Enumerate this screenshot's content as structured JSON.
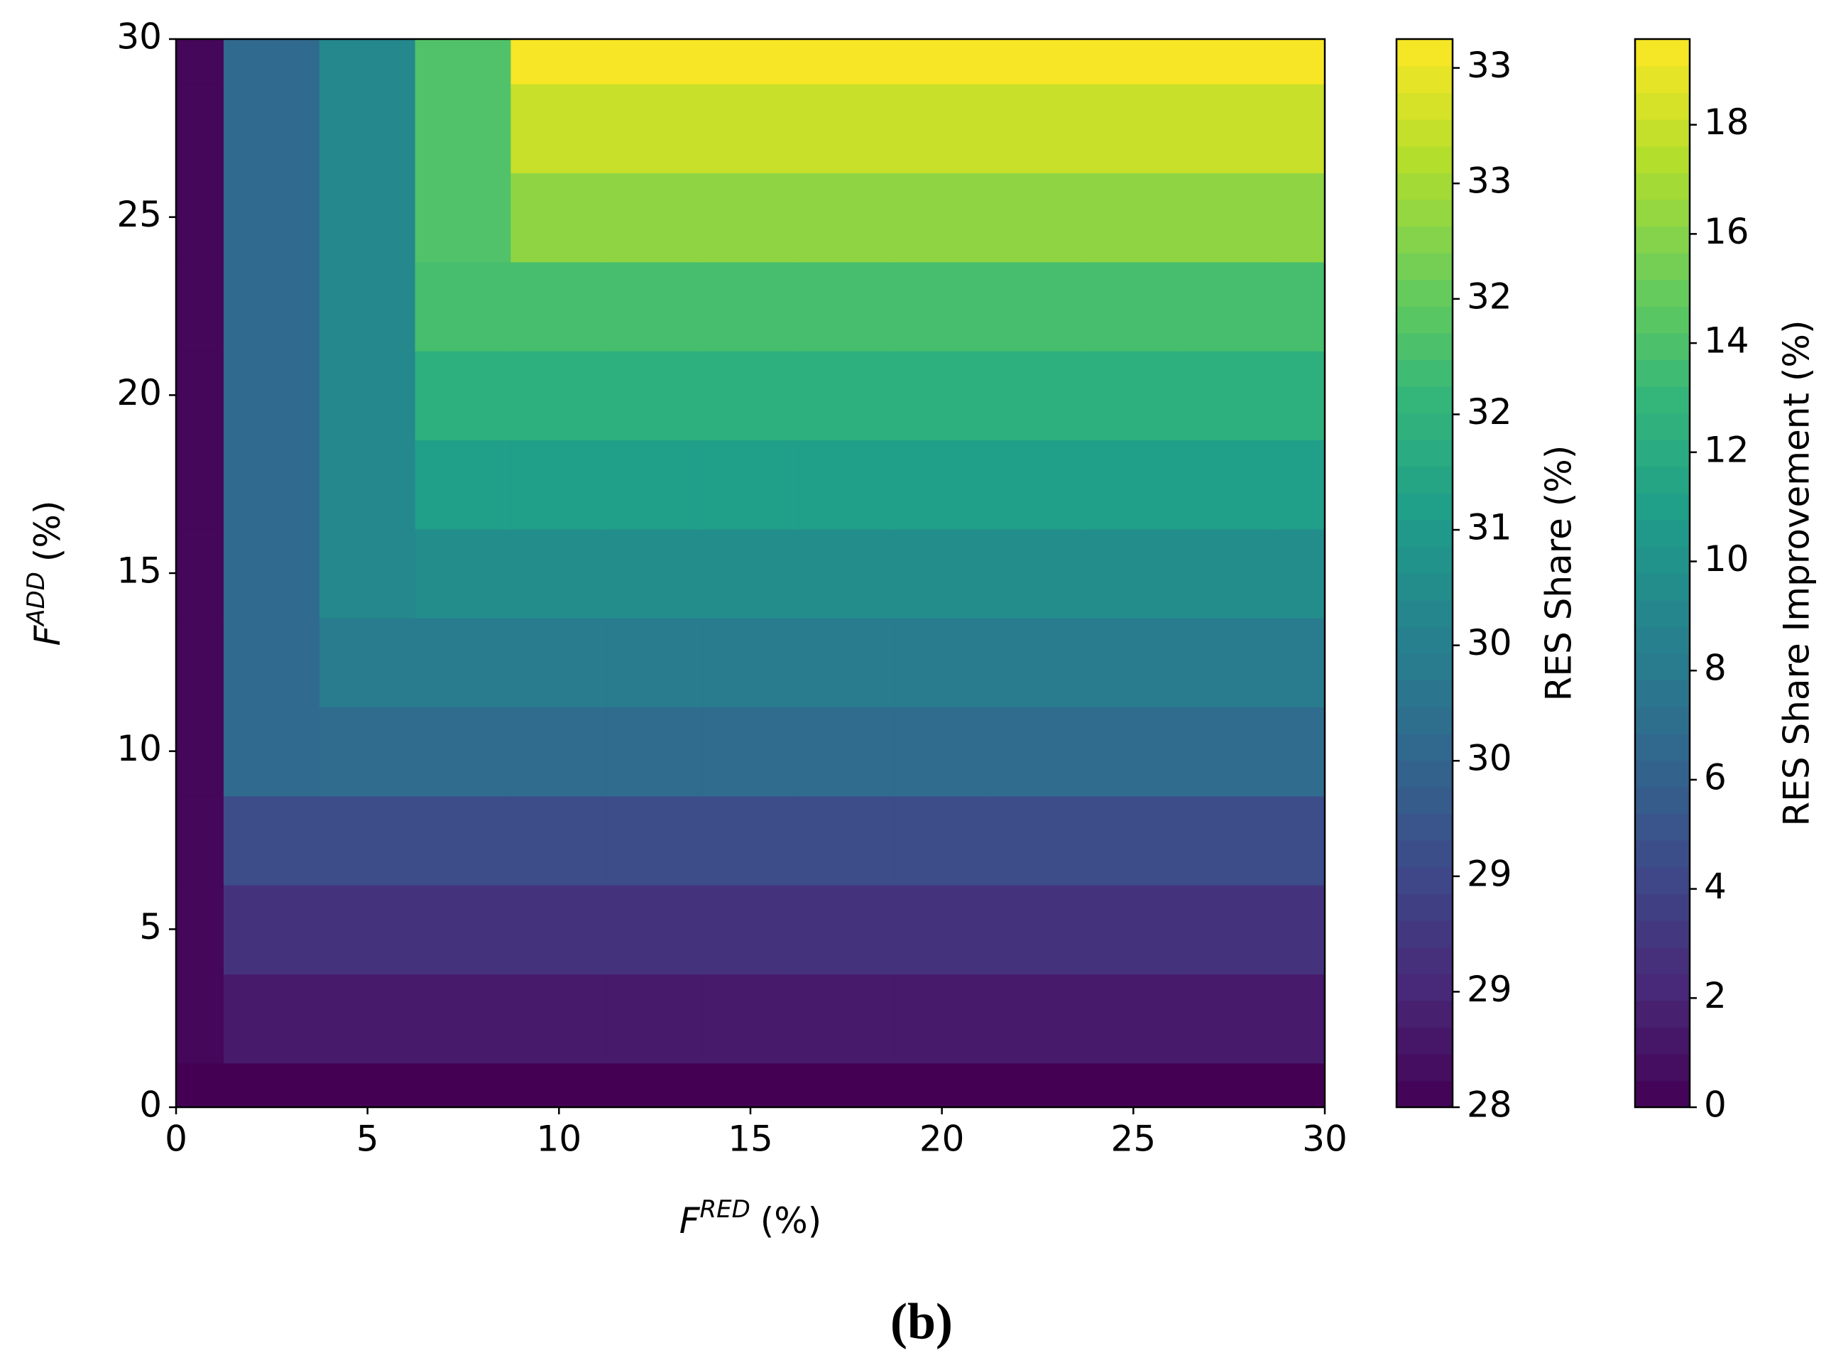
{
  "chart_data": {
    "type": "heatmap",
    "x": [
      0,
      2.5,
      5,
      7.5,
      10,
      12.5,
      15,
      17.5,
      20,
      22.5,
      25,
      27.5,
      30
    ],
    "y": [
      0,
      2.5,
      5,
      7.5,
      10,
      12.5,
      15,
      17.5,
      20,
      22.5,
      25,
      27.5,
      30
    ],
    "z": [
      [
        28.0,
        28.0,
        28.0,
        28.0,
        28.0,
        28.0,
        28.0,
        28.0,
        28.0,
        28.0,
        28.0,
        28.0,
        28.0
      ],
      [
        28.1,
        28.4,
        28.4,
        28.4,
        28.4,
        28.4,
        28.4,
        28.4,
        28.4,
        28.4,
        28.4,
        28.4,
        28.4
      ],
      [
        28.1,
        28.8,
        28.8,
        28.8,
        28.8,
        28.8,
        28.8,
        28.8,
        28.8,
        28.8,
        28.8,
        28.8,
        28.8
      ],
      [
        28.1,
        29.3,
        29.3,
        29.3,
        29.3,
        29.3,
        29.3,
        29.3,
        29.3,
        29.3,
        29.3,
        29.3,
        29.3
      ],
      [
        28.1,
        29.9,
        29.95,
        29.95,
        29.95,
        29.95,
        29.95,
        29.95,
        29.95,
        29.95,
        29.95,
        29.95,
        29.95
      ],
      [
        28.1,
        29.9,
        30.3,
        30.3,
        30.3,
        30.3,
        30.3,
        30.3,
        30.3,
        30.3,
        30.3,
        30.3,
        30.3
      ],
      [
        28.1,
        29.9,
        30.6,
        30.7,
        30.7,
        30.7,
        30.7,
        30.7,
        30.7,
        30.7,
        30.7,
        30.7,
        30.7
      ],
      [
        28.1,
        29.9,
        30.6,
        31.1,
        31.1,
        31.1,
        31.1,
        31.1,
        31.1,
        31.1,
        31.1,
        31.1,
        31.1
      ],
      [
        28.1,
        29.9,
        30.6,
        31.5,
        31.5,
        31.5,
        31.5,
        31.5,
        31.5,
        31.5,
        31.5,
        31.5,
        31.5
      ],
      [
        28.1,
        29.9,
        30.6,
        31.9,
        31.9,
        31.9,
        31.9,
        31.9,
        31.9,
        31.9,
        31.9,
        31.9,
        31.9
      ],
      [
        28.1,
        29.9,
        30.6,
        32.0,
        32.6,
        32.6,
        32.6,
        32.6,
        32.6,
        32.6,
        32.6,
        32.6,
        32.6
      ],
      [
        28.1,
        29.9,
        30.6,
        32.0,
        33.1,
        33.1,
        33.1,
        33.1,
        33.1,
        33.1,
        33.1,
        33.1,
        33.1
      ],
      [
        28.1,
        29.9,
        30.6,
        32.0,
        33.5,
        33.5,
        33.5,
        33.5,
        33.5,
        33.5,
        33.5,
        33.5,
        33.5
      ]
    ],
    "xlim": [
      0,
      30
    ],
    "ylim": [
      0,
      30
    ],
    "xticks": [
      0,
      5,
      10,
      15,
      20,
      25,
      30
    ],
    "yticks": [
      0,
      5,
      10,
      15,
      20,
      25,
      30
    ],
    "xlabel": {
      "main": "F",
      "superscript": "RED",
      "suffix": "(%)"
    },
    "ylabel": {
      "main": "F",
      "superscript": "ADD",
      "suffix": "(%)"
    },
    "colormap": "viridis",
    "colorbars": [
      {
        "label": "RES Share (%)",
        "lim": [
          28,
          33.55
        ],
        "ticks": [
          {
            "value": 28,
            "label": "28"
          },
          {
            "value": 28.6,
            "label": "29"
          },
          {
            "value": 29.2,
            "label": "29"
          },
          {
            "value": 29.8,
            "label": "30"
          },
          {
            "value": 30.4,
            "label": "30"
          },
          {
            "value": 31.0,
            "label": "31"
          },
          {
            "value": 31.6,
            "label": "32"
          },
          {
            "value": 32.2,
            "label": "32"
          },
          {
            "value": 32.8,
            "label": "33"
          },
          {
            "value": 33.4,
            "label": "33"
          }
        ]
      },
      {
        "label": "RES Share Improvement (%)",
        "lim": [
          0,
          19.57
        ],
        "ticks": [
          0,
          2,
          4,
          6,
          8,
          10,
          12,
          14,
          16,
          18
        ]
      }
    ]
  },
  "caption": "(b)"
}
